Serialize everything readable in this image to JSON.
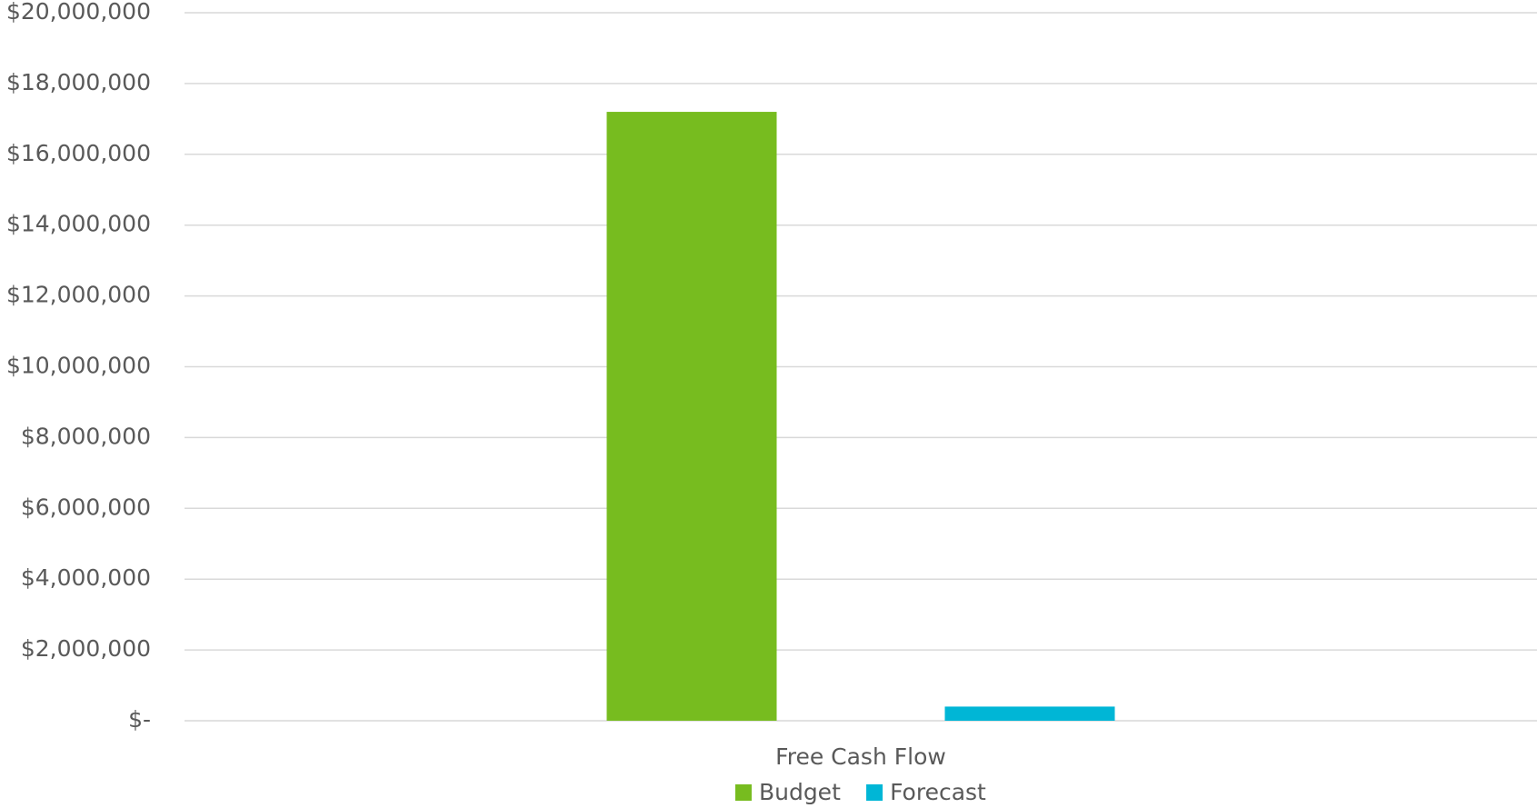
{
  "chart_data": {
    "type": "bar",
    "categories": [
      "Free Cash Flow"
    ],
    "series": [
      {
        "name": "Budget",
        "color": "#77bc1f",
        "values": [
          17200000
        ]
      },
      {
        "name": "Forecast",
        "color": "#00b6d6",
        "values": [
          400000
        ]
      }
    ],
    "ylim": [
      0,
      20000000
    ],
    "yticks": [
      {
        "value": 0,
        "label": "$-"
      },
      {
        "value": 2000000,
        "label": "$2,000,000"
      },
      {
        "value": 4000000,
        "label": "$4,000,000"
      },
      {
        "value": 6000000,
        "label": "$6,000,000"
      },
      {
        "value": 8000000,
        "label": "$8,000,000"
      },
      {
        "value": 10000000,
        "label": "$10,000,000"
      },
      {
        "value": 12000000,
        "label": "$12,000,000"
      },
      {
        "value": 14000000,
        "label": "$14,000,000"
      },
      {
        "value": 16000000,
        "label": "$16,000,000"
      },
      {
        "value": 18000000,
        "label": "$18,000,000"
      },
      {
        "value": 20000000,
        "label": "$20,000,000"
      }
    ],
    "grid": true,
    "legend": "bottom"
  }
}
